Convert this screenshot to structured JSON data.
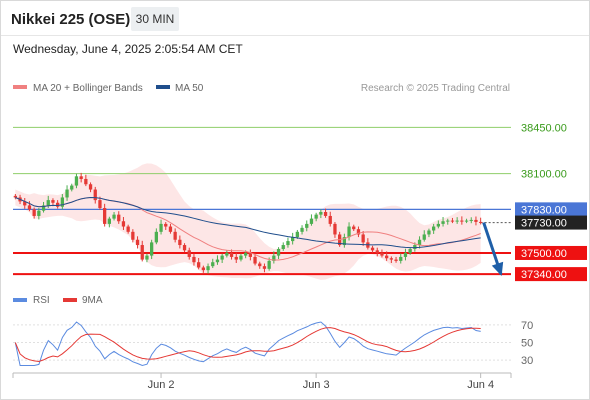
{
  "header": {
    "title": "Nikkei 225 (OSE)",
    "timeframe": "30 MIN",
    "timestamp": "Wednesday, June 4, 2025 2:05:54 AM CET"
  },
  "legend": {
    "ma20": "MA 20 + Bollinger Bands",
    "ma50": "MA 50",
    "credit": "Research © 2025 Trading Central"
  },
  "rsi_legend": {
    "rsi": "RSI",
    "ma": "9MA"
  },
  "colors": {
    "candle_up": "#4caf50",
    "candle_down": "#e53935",
    "ma20": "#f08080",
    "ma50": "#1f4e8c",
    "bollinger_fill": "#fde2e2",
    "resistance_line": "#4a76d6",
    "support_line": "#ee1111",
    "target_line": "#8fce6a",
    "arrow": "#1f5fa8",
    "rsi": "#5b8be0",
    "rsi_ma": "#e53935"
  },
  "chart_data": [
    {
      "type": "candlestick",
      "title": "Nikkei 225 (OSE)",
      "timeframe": "30 MIN",
      "ylim": [
        37250,
        38650
      ],
      "x_ticks": [
        "Jun 2",
        "Jun 3",
        "Jun 4"
      ],
      "levels": [
        {
          "value": 38450.0,
          "label": "38450.00",
          "kind": "target"
        },
        {
          "value": 38100.0,
          "label": "38100.00",
          "kind": "target"
        },
        {
          "value": 37830.0,
          "label": "37830.00",
          "kind": "resistance"
        },
        {
          "value": 37730.0,
          "label": "37730.00",
          "kind": "last"
        },
        {
          "value": 37500.0,
          "label": "37500.00",
          "kind": "support"
        },
        {
          "value": 37340.0,
          "label": "37340.00",
          "kind": "support"
        }
      ],
      "last_price": 37730.0,
      "close": [
        37920,
        37890,
        37860,
        37830,
        37780,
        37820,
        37860,
        37900,
        37880,
        37850,
        37920,
        37980,
        38010,
        38080,
        38060,
        38020,
        37980,
        37900,
        37840,
        37720,
        37760,
        37790,
        37740,
        37700,
        37660,
        37600,
        37560,
        37450,
        37480,
        37580,
        37660,
        37720,
        37700,
        37660,
        37600,
        37560,
        37520,
        37470,
        37430,
        37390,
        37370,
        37400,
        37430,
        37450,
        37480,
        37500,
        37470,
        37450,
        37480,
        37500,
        37470,
        37420,
        37400,
        37380,
        37440,
        37480,
        37530,
        37560,
        37590,
        37620,
        37660,
        37690,
        37720,
        37760,
        37790,
        37810,
        37780,
        37720,
        37640,
        37560,
        37620,
        37700,
        37680,
        37640,
        37580,
        37540,
        37520,
        37500,
        37480,
        37460,
        37450,
        37440,
        37470,
        37500,
        37530,
        37560,
        37600,
        37640,
        37670,
        37700,
        37720,
        37740,
        37745,
        37740,
        37745,
        37740,
        37745,
        37750,
        37735,
        37730
      ],
      "ma20_label": "MA 20 + Bollinger Bands",
      "ma50_label": "MA 50",
      "projection": {
        "from": 37730,
        "to": 37340
      }
    },
    {
      "type": "line",
      "title": "RSI",
      "ylim": [
        20,
        80
      ],
      "y_ticks": [
        70,
        50,
        30
      ],
      "series_names": [
        "RSI",
        "9MA"
      ],
      "x_ticks": [
        "Jun 2",
        "Jun 3",
        "Jun 4"
      ]
    }
  ]
}
